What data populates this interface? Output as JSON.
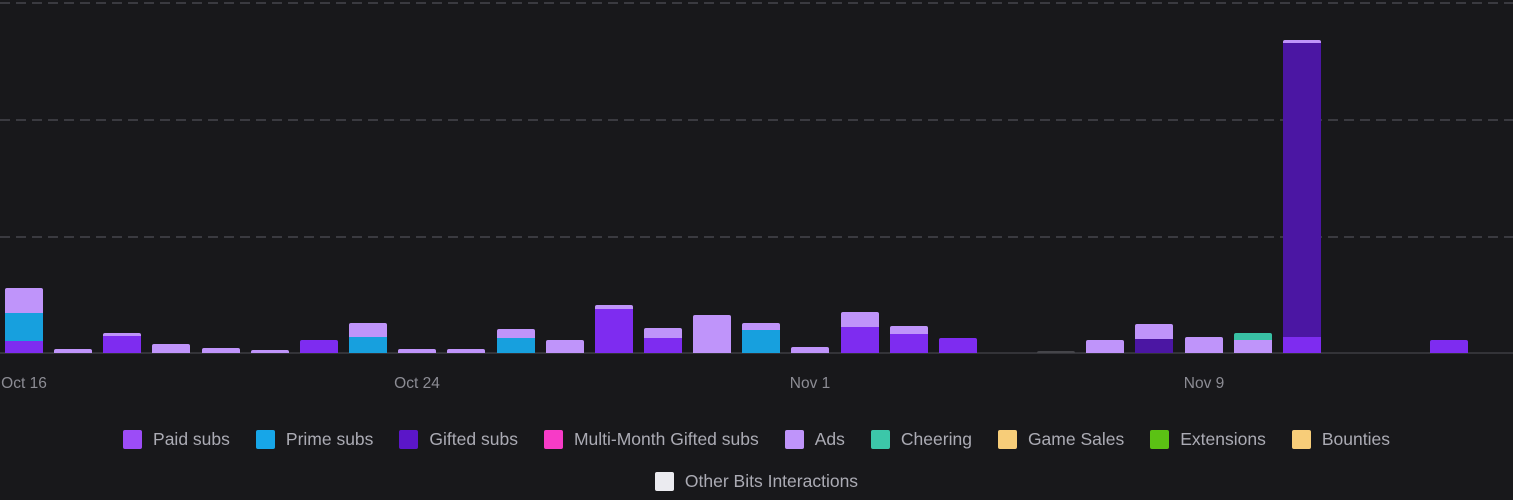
{
  "colors": {
    "background": "#18181b",
    "gridline": "#3a3a40",
    "axis_label": "#8c8c94",
    "legend_label": "#ababb4",
    "bar_series": {
      "paid_subs": "#7e2cf0",
      "prime_subs": "#17a0de",
      "gifted_subs": "#4b16a3",
      "multi_month_gifted_subs": "#f73bc7",
      "ads": "#bf94fa",
      "cheering": "#38c0a4",
      "game_sales": "#f7cd79",
      "extensions": "#5bc214",
      "bounties": "#f7cd79",
      "other_bits": "#45454a"
    }
  },
  "chart_data": {
    "type": "bar",
    "stacked": true,
    "title": "",
    "xlabel": "",
    "ylabel": "",
    "y_axis_labeled": false,
    "grid": "dashed horizontal lines",
    "legend_position": "bottom-center",
    "num_day_slots": 31,
    "x_ticks": [
      {
        "day": 0,
        "label": "Oct 16"
      },
      {
        "day": 8,
        "label": "Oct 24"
      },
      {
        "day": 16,
        "label": "Nov 1"
      },
      {
        "day": 24,
        "label": "Nov 9"
      }
    ],
    "series_order": [
      "paid_subs",
      "prime_subs",
      "gifted_subs",
      "multi_month_gifted_subs",
      "ads",
      "cheering",
      "game_sales",
      "extensions",
      "bounties",
      "other_bits"
    ],
    "value_note": "y-axis has no visible tick labels; segment values below are measured bar-segment heights in screen pixels (baseline at y=353, gridlines every 117px)",
    "bars": [
      {
        "day": 0,
        "segments": {
          "paid_subs": 12,
          "prime_subs": 28,
          "ads": 25
        }
      },
      {
        "day": 1,
        "segments": {
          "ads": 4
        }
      },
      {
        "day": 2,
        "segments": {
          "paid_subs": 17,
          "ads": 3
        }
      },
      {
        "day": 3,
        "segments": {
          "ads": 9
        }
      },
      {
        "day": 4,
        "segments": {
          "ads": 5
        }
      },
      {
        "day": 5,
        "segments": {
          "ads": 3
        }
      },
      {
        "day": 6,
        "segments": {
          "paid_subs": 13
        }
      },
      {
        "day": 7,
        "segments": {
          "prime_subs": 16,
          "ads": 14
        }
      },
      {
        "day": 8,
        "segments": {
          "ads": 4
        }
      },
      {
        "day": 9,
        "segments": {
          "ads": 4
        }
      },
      {
        "day": 10,
        "segments": {
          "prime_subs": 15,
          "ads": 9
        }
      },
      {
        "day": 11,
        "segments": {
          "ads": 13
        }
      },
      {
        "day": 12,
        "segments": {
          "paid_subs": 44,
          "ads": 4
        }
      },
      {
        "day": 13,
        "segments": {
          "paid_subs": 15,
          "ads": 10
        }
      },
      {
        "day": 14,
        "segments": {
          "ads": 38
        }
      },
      {
        "day": 15,
        "segments": {
          "prime_subs": 23,
          "ads": 7
        }
      },
      {
        "day": 16,
        "segments": {
          "ads": 6
        }
      },
      {
        "day": 17,
        "segments": {
          "paid_subs": 26,
          "ads": 15
        }
      },
      {
        "day": 18,
        "segments": {
          "paid_subs": 19,
          "ads": 8
        }
      },
      {
        "day": 19,
        "segments": {
          "paid_subs": 15
        }
      },
      {
        "day": 21,
        "segments": {
          "other_bits": 2
        }
      },
      {
        "day": 22,
        "segments": {
          "ads": 13
        }
      },
      {
        "day": 23,
        "segments": {
          "gifted_subs": 14,
          "ads": 15
        }
      },
      {
        "day": 24,
        "segments": {
          "ads": 16
        }
      },
      {
        "day": 25,
        "segments": {
          "ads": 13,
          "cheering": 7
        }
      },
      {
        "day": 26,
        "segments": {
          "paid_subs": 16,
          "gifted_subs": 294,
          "ads": 3
        }
      },
      {
        "day": 29,
        "segments": {
          "paid_subs": 13
        }
      }
    ]
  },
  "legend": {
    "rows": [
      [
        {
          "key": "paid_subs",
          "label": "Paid subs",
          "color": "#9c4cf7"
        },
        {
          "key": "prime_subs",
          "label": "Prime subs",
          "color": "#17a6e8"
        },
        {
          "key": "gifted_subs",
          "label": "Gifted subs",
          "color": "#5b16c8"
        },
        {
          "key": "multi_month_gifted_subs",
          "label": "Multi-Month Gifted subs",
          "color": "#f73bc7"
        },
        {
          "key": "ads",
          "label": "Ads",
          "color": "#bf94fa"
        },
        {
          "key": "cheering",
          "label": "Cheering",
          "color": "#3cc7a9"
        },
        {
          "key": "game_sales",
          "label": "Game Sales",
          "color": "#f7cd79"
        },
        {
          "key": "extensions",
          "label": "Extensions",
          "color": "#5bc214"
        },
        {
          "key": "bounties",
          "label": "Bounties",
          "color": "#f7cd79"
        }
      ],
      [
        {
          "key": "other_bits",
          "label": "Other Bits Interactions",
          "color": "#ebebf0"
        }
      ]
    ]
  }
}
